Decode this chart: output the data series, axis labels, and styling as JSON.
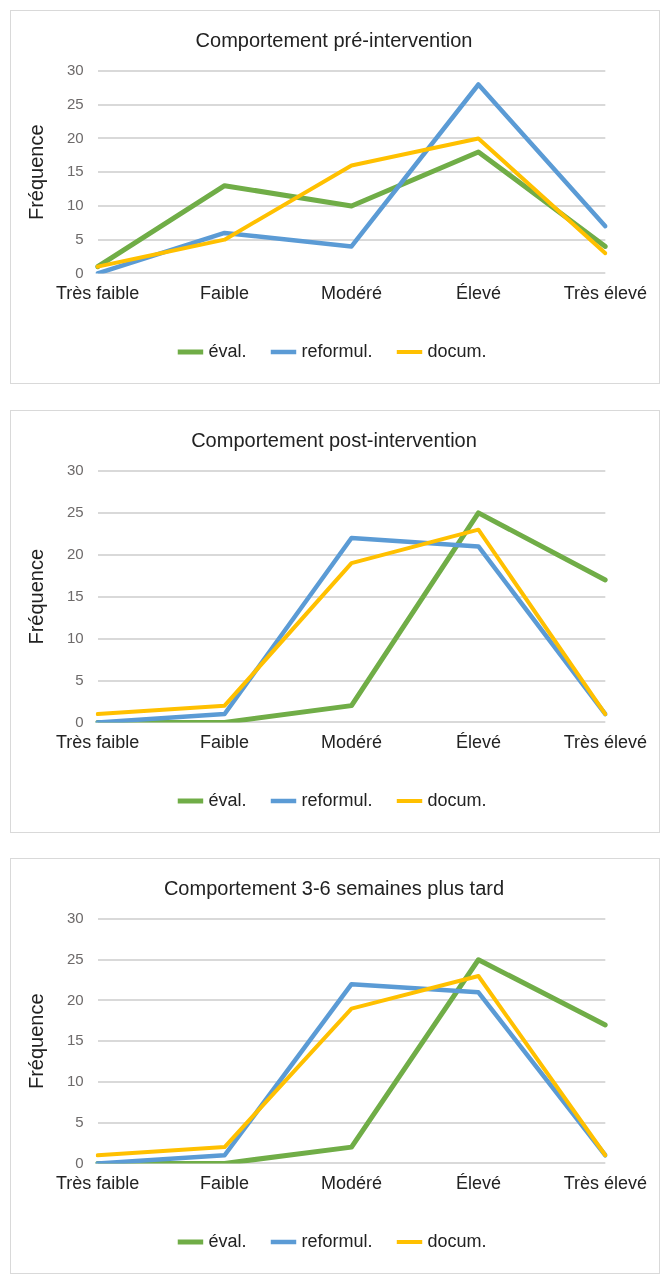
{
  "chart_data": [
    {
      "type": "line",
      "title": "Comportement pré-intervention",
      "ylabel": "Fréquence",
      "categories": [
        "Très faible",
        "Faible",
        "Modéré",
        "Élevé",
        "Très élevé"
      ],
      "series": [
        {
          "name": "éval.",
          "color": "#70ad47",
          "values": [
            1,
            13,
            10,
            18,
            4
          ]
        },
        {
          "name": "reformul.",
          "color": "#5b9bd5",
          "values": [
            0,
            6,
            4,
            28,
            7
          ]
        },
        {
          "name": "docum.",
          "color": "#ffc000",
          "values": [
            1,
            5,
            16,
            20,
            3
          ]
        }
      ],
      "ylim": [
        0,
        30
      ],
      "yticks": [
        0,
        5,
        10,
        15,
        20,
        25,
        30
      ],
      "grid": "y",
      "legend": "bottom",
      "marker": "none",
      "line_style": "solid"
    },
    {
      "type": "line",
      "title": "Comportement post-intervention",
      "ylabel": "Fréquence",
      "categories": [
        "Très faible",
        "Faible",
        "Modéré",
        "Élevé",
        "Très élevé"
      ],
      "series": [
        {
          "name": "éval.",
          "color": "#70ad47",
          "values": [
            0,
            0,
            2,
            25,
            17
          ]
        },
        {
          "name": "reformul.",
          "color": "#5b9bd5",
          "values": [
            0,
            1,
            22,
            21,
            1
          ]
        },
        {
          "name": "docum.",
          "color": "#ffc000",
          "values": [
            1,
            2,
            19,
            23,
            1
          ]
        }
      ],
      "ylim": [
        0,
        30
      ],
      "yticks": [
        0,
        5,
        10,
        15,
        20,
        25,
        30
      ],
      "grid": "y",
      "legend": "bottom",
      "marker": "none",
      "line_style": "solid"
    },
    {
      "type": "line",
      "title": "Comportement 3-6 semaines plus tard",
      "ylabel": "Fréquence",
      "categories": [
        "Très faible",
        "Faible",
        "Modéré",
        "Élevé",
        "Très élevé"
      ],
      "series": [
        {
          "name": "éval.",
          "color": "#70ad47",
          "values": [
            0,
            0,
            2,
            25,
            17
          ]
        },
        {
          "name": "reformul.",
          "color": "#5b9bd5",
          "values": [
            0,
            1,
            22,
            21,
            1
          ]
        },
        {
          "name": "docum.",
          "color": "#ffc000",
          "values": [
            1,
            2,
            19,
            23,
            1
          ]
        }
      ],
      "ylim": [
        0,
        30
      ],
      "yticks": [
        0,
        5,
        10,
        15,
        20,
        25,
        30
      ],
      "grid": "y",
      "legend": "bottom",
      "marker": "none",
      "line_style": "solid"
    }
  ]
}
